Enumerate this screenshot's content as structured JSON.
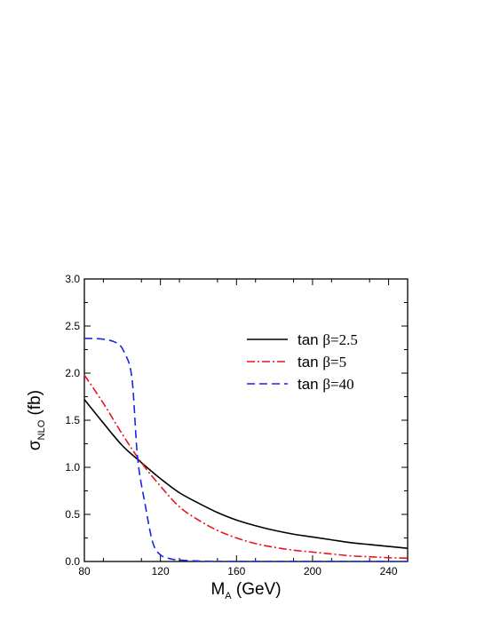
{
  "chart_data": {
    "type": "line",
    "xlabel": {
      "main": "M",
      "sub": "A",
      "rest": " (GeV)"
    },
    "ylabel": {
      "main": "σ",
      "sub": "NLO",
      "rest": " (fb)"
    },
    "xlim": [
      80,
      250
    ],
    "ylim": [
      0,
      3.0
    ],
    "xticks": [
      80,
      120,
      160,
      200,
      240
    ],
    "yticks": [
      0,
      0.5,
      1.0,
      1.5,
      2.0,
      2.5,
      3.0
    ],
    "xtick_labels": [
      "80",
      "120",
      "160",
      "200",
      "240"
    ],
    "ytick_labels": [
      "0.0",
      "0.5",
      "1.0",
      "1.5",
      "2.0",
      "2.5",
      "3.0"
    ],
    "grid": false,
    "legend_position": "top-right",
    "series": [
      {
        "name": "tan β=2.5",
        "label_prefix": "tan ",
        "label_symbol": "β",
        "label_suffix": "=2.5",
        "color": "#000000",
        "dash": "solid",
        "x": [
          80,
          90,
          100,
          110,
          120,
          130,
          140,
          150,
          160,
          170,
          180,
          190,
          200,
          210,
          220,
          230,
          240,
          250
        ],
        "y": [
          1.72,
          1.47,
          1.23,
          1.05,
          0.88,
          0.73,
          0.62,
          0.52,
          0.44,
          0.38,
          0.33,
          0.29,
          0.26,
          0.23,
          0.2,
          0.18,
          0.16,
          0.14
        ]
      },
      {
        "name": "tan β=5",
        "label_prefix": "tan ",
        "label_symbol": "β",
        "label_suffix": "=5",
        "color": "#e8141c",
        "dash": "dashdot",
        "x": [
          80,
          90,
          100,
          110,
          120,
          130,
          140,
          150,
          160,
          170,
          180,
          190,
          200,
          210,
          220,
          230,
          240,
          250
        ],
        "y": [
          1.98,
          1.68,
          1.35,
          1.05,
          0.8,
          0.58,
          0.44,
          0.33,
          0.25,
          0.19,
          0.15,
          0.12,
          0.1,
          0.08,
          0.06,
          0.05,
          0.04,
          0.035
        ]
      },
      {
        "name": "tan β=40",
        "label_prefix": "tan ",
        "label_symbol": "β",
        "label_suffix": "=40",
        "color": "#1428e6",
        "dash": "dashed",
        "x": [
          80,
          90,
          97,
          101,
          105,
          108,
          112,
          116,
          120,
          125,
          130,
          140,
          150,
          160,
          250
        ],
        "y": [
          2.37,
          2.36,
          2.32,
          2.22,
          1.95,
          1.1,
          0.6,
          0.2,
          0.07,
          0.03,
          0.015,
          0.005,
          0.002,
          0.001,
          0.0
        ]
      }
    ]
  }
}
